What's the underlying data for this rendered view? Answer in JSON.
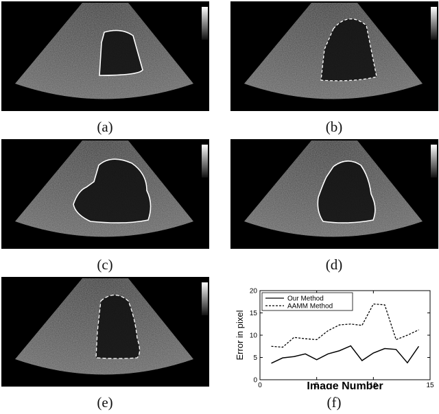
{
  "figure": {
    "captions": [
      "(a)",
      "(b)",
      "(c)",
      "(d)",
      "(e)",
      "(f)"
    ]
  },
  "chart_data": {
    "type": "line",
    "xlabel": "Image Number",
    "ylabel": "Error in pixel",
    "xlim": [
      0,
      15
    ],
    "ylim": [
      0,
      20
    ],
    "xticks": [
      0,
      5,
      10,
      15
    ],
    "yticks": [
      0,
      5,
      10,
      15,
      20
    ],
    "legend_position": "top-left",
    "x": [
      1,
      2,
      3,
      4,
      5,
      6,
      7,
      8,
      9,
      10,
      11,
      12,
      13,
      14
    ],
    "series": [
      {
        "name": "Our Method",
        "style": "solid",
        "values": [
          3.7,
          4.9,
          5.2,
          5.8,
          4.5,
          5.8,
          6.5,
          7.6,
          4.3,
          6.0,
          7.0,
          6.8,
          3.8,
          7.5
        ]
      },
      {
        "name": "AAMM Method",
        "style": "dashed",
        "values": [
          7.5,
          7.3,
          9.5,
          9.2,
          9.0,
          11.0,
          12.3,
          12.5,
          12.2,
          17.0,
          16.8,
          9.0,
          10.0,
          11.2
        ]
      }
    ],
    "colors": {
      "line": "#000000",
      "background": "#ffffff"
    }
  }
}
